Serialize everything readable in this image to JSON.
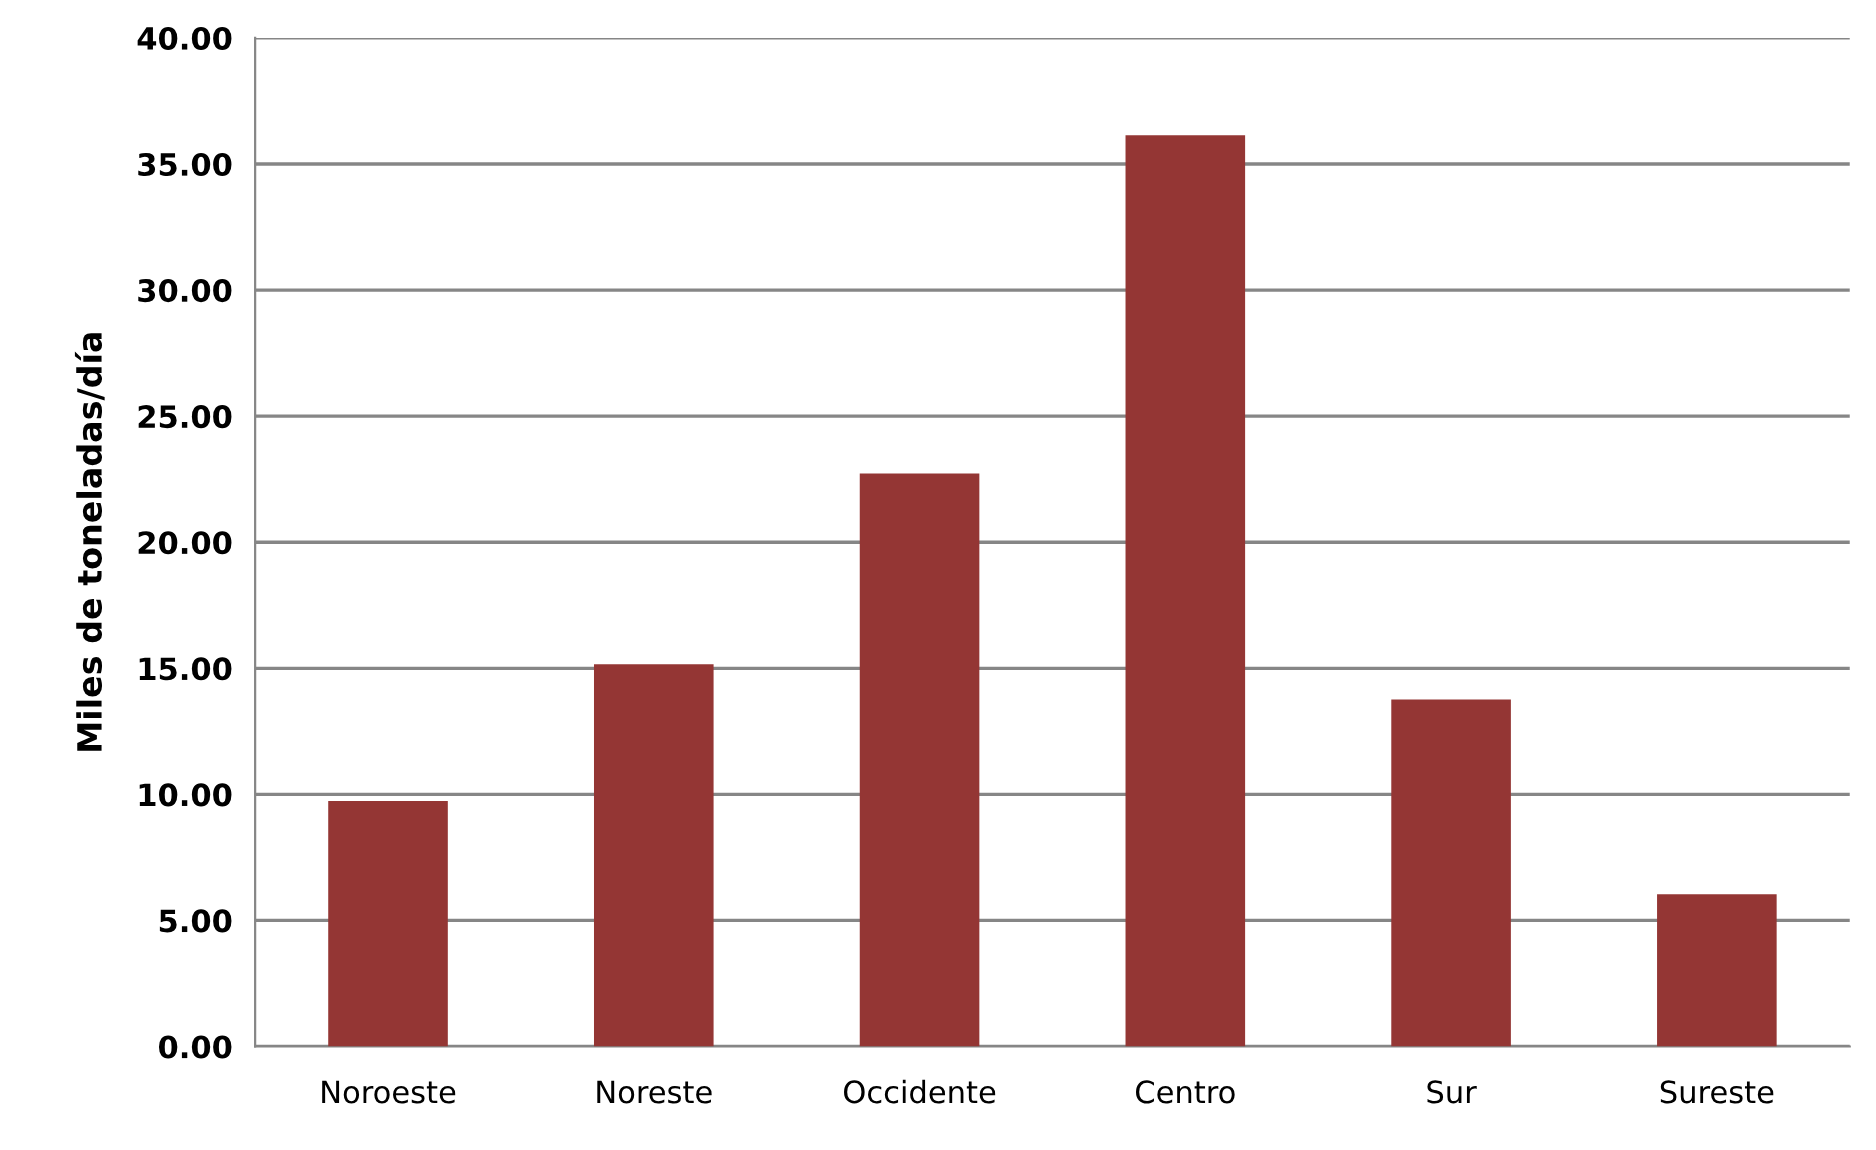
{
  "chart_data": {
    "type": "bar",
    "ylabel": "Miles de toneladas/día",
    "categories": [
      "Noroeste",
      "Noreste",
      "Occidente",
      "Centro",
      "Sur",
      "Sureste"
    ],
    "values": [
      9.74,
      15.16,
      22.73,
      36.14,
      13.76,
      6.04
    ],
    "color": "#943634",
    "ylim": [
      0,
      40
    ],
    "yticks": [
      {
        "value": 0,
        "label": "0.00"
      },
      {
        "value": 5,
        "label": "5.00"
      },
      {
        "value": 10,
        "label": "10.00"
      },
      {
        "value": 15,
        "label": "15.00"
      },
      {
        "value": 20,
        "label": "20.00"
      },
      {
        "value": 25,
        "label": "25.00"
      },
      {
        "value": 30,
        "label": "30.00"
      },
      {
        "value": 35,
        "label": "35.00"
      },
      {
        "value": 40,
        "label": "40.00"
      }
    ],
    "grid": "y"
  }
}
